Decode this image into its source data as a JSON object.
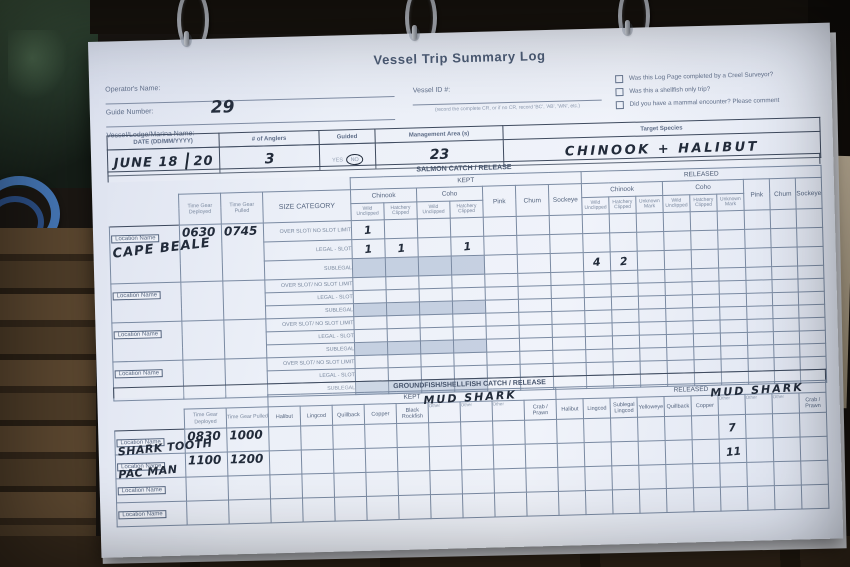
{
  "form": {
    "title": "Vessel Trip Summary Log",
    "operator_label": "Operator's Name:",
    "guide_label": "Guide Number:",
    "guide_value": "29",
    "vessel_name_label": "Vessel/Lodge/Marina Name:",
    "vessel_id_label": "Vessel ID #:",
    "vessel_id_hint": "(record the complete CR, or if no CR, record 'BC', 'AB', 'WN', etc.)",
    "checkboxes": [
      "Was this Log Page completed by a Creel Surveyor?",
      "Was this a shellfish only trip?",
      "Did you have a mammal encounter? Please comment"
    ]
  },
  "trip": {
    "date_label": "DATE (DD/MM/YYYY)",
    "date_value": "JUNE 18",
    "date_year": "20",
    "anglers_label": "# of Anglers",
    "anglers_value": "3",
    "guided_label": "Guided",
    "guided_yes": "YES",
    "guided_no": "NO",
    "guided_circled": "NO",
    "area_label": "Management Area (s)",
    "area_value": "23",
    "target_label": "Target Species",
    "target_value": "CHINOOK + HALIBUT"
  },
  "salmon": {
    "title": "SALMON CATCH / RELEASE",
    "kept": "KEPT",
    "released": "RELEASED",
    "location_label": "Location Name",
    "time_deployed": "Time Gear Deployed",
    "time_pulled": "Time Gear Pulled",
    "size_category": "SIZE CATEGORY",
    "chinook": "Chinook",
    "coho": "Coho",
    "pink": "Pink",
    "chum": "Chum",
    "sockeye": "Sockeye",
    "wild": "Wild Unclipped",
    "hatchery": "Hatchery Clipped",
    "unknown": "Unknown Mark",
    "size_rows": [
      "OVER SLOT/ NO SLOT LIMIT",
      "LEGAL - SLOT",
      "SUBLEGAL"
    ],
    "blocks": [
      {
        "location": "CAPE BEALE",
        "deployed": "0630",
        "pulled": "0745",
        "rows": [
          [
            "1",
            "",
            "",
            "",
            "",
            "",
            "",
            "",
            "",
            "",
            "",
            "",
            "",
            "",
            "",
            ""
          ],
          [
            "1",
            "1",
            "",
            "1",
            "",
            "",
            "",
            "",
            "",
            "",
            "",
            "",
            "",
            "",
            "",
            ""
          ],
          [
            "",
            "",
            "",
            "",
            "",
            "",
            "",
            "4",
            "2",
            "",
            "",
            "",
            "",
            "",
            "",
            ""
          ]
        ]
      },
      {
        "location": "",
        "deployed": "",
        "pulled": ""
      },
      {
        "location": "",
        "deployed": "",
        "pulled": ""
      },
      {
        "location": "",
        "deployed": "",
        "pulled": ""
      }
    ]
  },
  "groundfish": {
    "title": "GROUNDFISH/SHELLFISH CATCH / RELEASE",
    "kept": "KEPT",
    "released": "RELEASED",
    "location_label": "Location Name",
    "time_deployed": "Time Gear Deployed",
    "time_pulled": "Time Gear Pulled",
    "kept_cols": [
      "Halibut",
      "Lingcod",
      "Quillback",
      "Copper",
      "Black Rockfish",
      "Other",
      "Other",
      "Other",
      "Crab / Prawn"
    ],
    "released_cols": [
      "Halibut",
      "Lingcod",
      "Sublegal Lingcod",
      "Yelloweye",
      "Quillback",
      "Copper",
      "Other",
      "Other",
      "Other",
      "Crab / Prawn"
    ],
    "kept_other_note": "MUD SHARK",
    "released_other_note": "MUD SHARK",
    "rows": [
      {
        "location": "SHARK TOOTH",
        "deployed": "0830",
        "pulled": "1000",
        "released": [
          "",
          "",
          "",
          "",
          "",
          "",
          "7",
          "",
          "",
          ""
        ]
      },
      {
        "location": "PAC MAN",
        "deployed": "1100",
        "pulled": "1200",
        "released": [
          "",
          "",
          "",
          "",
          "",
          "",
          "11",
          "",
          "",
          ""
        ]
      },
      {
        "location": "",
        "deployed": "",
        "pulled": ""
      },
      {
        "location": "",
        "deployed": "",
        "pulled": ""
      }
    ]
  }
}
